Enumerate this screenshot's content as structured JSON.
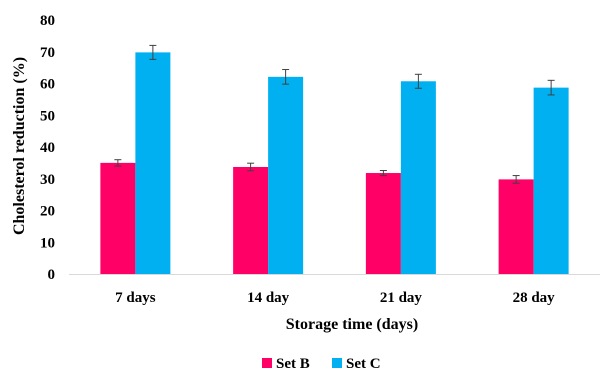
{
  "chart_data": {
    "type": "bar",
    "title": "",
    "xlabel": "Storage time (days)",
    "ylabel": "Cholesterol reduction (%)",
    "categories": [
      "7 days",
      "14 day",
      "21 day",
      "28 day"
    ],
    "ylim": [
      0,
      80
    ],
    "yticks": [
      0,
      10,
      20,
      30,
      40,
      50,
      60,
      70,
      80
    ],
    "grid": false,
    "legend_position": "bottom",
    "series": [
      {
        "name": "Set B",
        "color": "#FF0066",
        "values": [
          35.0,
          33.7,
          31.8,
          29.8
        ],
        "errors": [
          1.0,
          1.2,
          0.8,
          1.2
        ]
      },
      {
        "name": "Set C",
        "color": "#00B0F0",
        "values": [
          69.8,
          62.1,
          60.7,
          58.7
        ],
        "errors": [
          2.2,
          2.3,
          2.2,
          2.3
        ]
      }
    ]
  }
}
